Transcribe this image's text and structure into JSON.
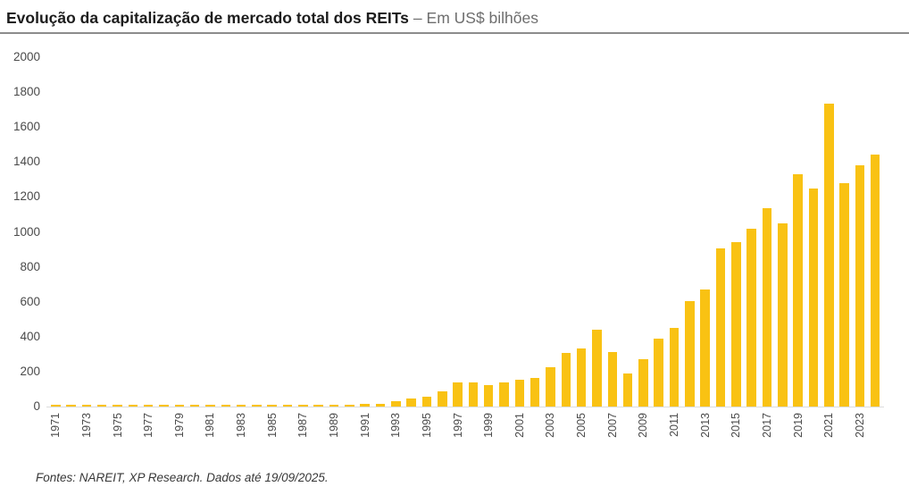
{
  "header": {
    "title": "Evolução da capitalização de mercado total dos REITs",
    "subtitle": "– Em US$ bilhões"
  },
  "footer": {
    "source": "Fontes: NAREIT, XP Research. Dados até 19/09/2025."
  },
  "colors": {
    "bar": "#F9C213",
    "title_text": "#1C1C1C",
    "subtitle_text": "#6E6E6E",
    "axis_text": "#4A4A4A",
    "axis_line": "#DCDCDC",
    "header_rule": "#8C8C8C",
    "footer_text": "#383838"
  },
  "chart_data": {
    "type": "bar",
    "title": "Evolução da capitalização de mercado total dos REITs – Em US$ bilhões",
    "unit": "US$ bilhões",
    "xlabel": "",
    "ylabel": "",
    "ylim": [
      0,
      2000
    ],
    "ytick_step": 200,
    "yticks": [
      0,
      200,
      400,
      600,
      800,
      1000,
      1200,
      1400,
      1600,
      1800,
      2000
    ],
    "grid": false,
    "legend": "none",
    "xtick_note": "only odd years labeled, rotated 90° (bottom-to-top)",
    "categories": [
      1971,
      1972,
      1973,
      1974,
      1975,
      1976,
      1977,
      1978,
      1979,
      1980,
      1981,
      1982,
      1983,
      1984,
      1985,
      1986,
      1987,
      1988,
      1989,
      1990,
      1991,
      1992,
      1993,
      1994,
      1995,
      1996,
      1997,
      1998,
      1999,
      2000,
      2001,
      2002,
      2003,
      2004,
      2005,
      2006,
      2007,
      2008,
      2009,
      2010,
      2011,
      2012,
      2013,
      2014,
      2015,
      2016,
      2017,
      2018,
      2019,
      2020,
      2021,
      2022,
      2023,
      2024
    ],
    "values": [
      1.5,
      1.9,
      1.4,
      0.7,
      0.9,
      1.3,
      1.5,
      1.4,
      1.8,
      2.3,
      2.4,
      3.3,
      4.3,
      5.1,
      7.7,
      9.9,
      9.7,
      11.4,
      11.7,
      8.7,
      13.0,
      15.9,
      32.2,
      44.3,
      57.5,
      88.8,
      140.5,
      138.3,
      124.3,
      138.7,
      154.9,
      161.9,
      224.2,
      307.9,
      330.7,
      438.1,
      312.0,
      191.7,
      271.2,
      389.3,
      450.5,
      603.4,
      670.3,
      907.4,
      938.9,
      1018.7,
      1133.7,
      1047.6,
      1328.8,
      1249.0,
      1735.6,
      1280.8,
      1379.9,
      1445.0
    ]
  }
}
